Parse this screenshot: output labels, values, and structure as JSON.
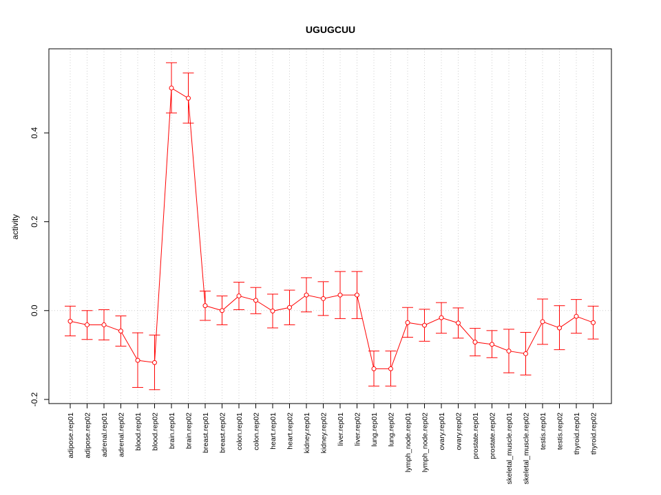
{
  "chart_data": {
    "type": "line",
    "title": "UGUGCUU",
    "xlabel": "",
    "ylabel": "activity",
    "ylim": [
      -0.2,
      0.58
    ],
    "yticks": [
      -0.2,
      0.0,
      0.2,
      0.4
    ],
    "ytick_labels": [
      "-0.2",
      "0.0",
      "0.2",
      "0.4"
    ],
    "grid": true,
    "color": "#ff0000",
    "categories": [
      "adipose.rep01",
      "adipose.rep02",
      "adrenal.rep01",
      "adrenal.rep02",
      "blood.rep01",
      "blood.rep02",
      "brain.rep01",
      "brain.rep02",
      "breast.rep01",
      "breast.rep02",
      "colon.rep01",
      "colon.rep02",
      "heart.rep01",
      "heart.rep02",
      "kidney.rep01",
      "kidney.rep02",
      "liver.rep01",
      "liver.rep02",
      "lung.rep01",
      "lung.rep02",
      "lymph_node.rep01",
      "lymph_node.rep02",
      "ovary.rep01",
      "ovary.rep02",
      "prostate.rep01",
      "prostate.rep02",
      "skeletal_muscle.rep01",
      "skeletal_muscle.rep02",
      "testis.rep01",
      "testis.rep02",
      "thyroid.rep01",
      "thyroid.rep02"
    ],
    "values": [
      -0.024,
      -0.032,
      -0.032,
      -0.046,
      -0.112,
      -0.117,
      0.501,
      0.478,
      0.011,
      0.0,
      0.033,
      0.023,
      -0.001,
      0.007,
      0.035,
      0.027,
      0.035,
      0.035,
      -0.131,
      -0.131,
      -0.027,
      -0.033,
      -0.016,
      -0.028,
      -0.071,
      -0.076,
      -0.091,
      -0.097,
      -0.025,
      -0.039,
      -0.013,
      -0.027
    ],
    "lower": [
      -0.057,
      -0.065,
      -0.066,
      -0.08,
      -0.173,
      -0.178,
      0.445,
      0.422,
      -0.022,
      -0.032,
      0.002,
      -0.007,
      -0.039,
      -0.032,
      -0.003,
      -0.011,
      -0.018,
      -0.018,
      -0.17,
      -0.17,
      -0.06,
      -0.069,
      -0.051,
      -0.062,
      -0.102,
      -0.106,
      -0.14,
      -0.145,
      -0.076,
      -0.088,
      -0.051,
      -0.064
    ],
    "upper": [
      0.01,
      0.0,
      0.002,
      -0.012,
      -0.05,
      -0.055,
      0.558,
      0.535,
      0.044,
      0.033,
      0.064,
      0.052,
      0.037,
      0.046,
      0.074,
      0.065,
      0.088,
      0.088,
      -0.091,
      -0.091,
      0.007,
      0.003,
      0.018,
      0.006,
      -0.04,
      -0.045,
      -0.042,
      -0.049,
      0.026,
      0.011,
      0.025,
      0.01
    ]
  }
}
